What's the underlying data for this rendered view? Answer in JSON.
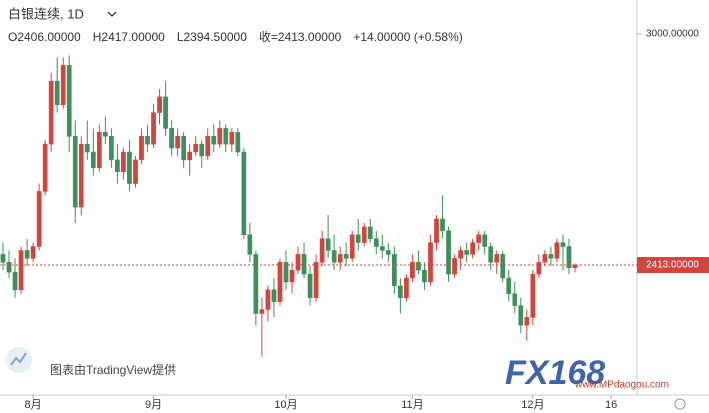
{
  "chart_data": {
    "type": "candlestick",
    "title": "白银连续, 1D",
    "ohlc_legend": [
      "O2406.00000",
      "H2417.00000",
      "L2394.50000",
      "收=2413.00000",
      "+14.00000 (+0.58%)"
    ],
    "up_color": "#d0463f",
    "down_color": "#3f8f5c",
    "open": [
      2440,
      2420,
      2395,
      2350,
      2450,
      2430,
      2460,
      2600,
      2720,
      2880,
      2820,
      2920,
      2740,
      2560,
      2720,
      2700,
      2660,
      2750,
      2740,
      2680,
      2650,
      2700,
      2620,
      2680,
      2740,
      2720,
      2800,
      2840,
      2760,
      2710,
      2740,
      2680,
      2700,
      2720,
      2690,
      2740,
      2720,
      2760,
      2720,
      2750,
      2700,
      2490,
      2440,
      2290,
      2300,
      2350,
      2320,
      2420,
      2370,
      2400,
      2440,
      2390,
      2330,
      2420,
      2480,
      2450,
      2420,
      2440,
      2430,
      2490,
      2470,
      2510,
      2480,
      2460,
      2450,
      2440,
      2360,
      2330,
      2380,
      2420,
      2400,
      2370,
      2470,
      2530,
      2500,
      2390,
      2430,
      2450,
      2440,
      2470,
      2490,
      2460,
      2420,
      2440,
      2380,
      2340,
      2310,
      2260,
      2280,
      2390,
      2420,
      2440,
      2430,
      2470,
      2460,
      2406
    ],
    "high": [
      2470,
      2450,
      2430,
      2460,
      2480,
      2470,
      2620,
      2730,
      2900,
      2940,
      2940,
      2945,
      2780,
      2740,
      2780,
      2760,
      2770,
      2790,
      2760,
      2720,
      2710,
      2730,
      2690,
      2760,
      2770,
      2820,
      2860,
      2880,
      2780,
      2760,
      2750,
      2720,
      2740,
      2730,
      2760,
      2770,
      2780,
      2770,
      2760,
      2760,
      2710,
      2520,
      2450,
      2330,
      2360,
      2380,
      2430,
      2450,
      2420,
      2460,
      2470,
      2410,
      2440,
      2500,
      2540,
      2490,
      2460,
      2470,
      2500,
      2530,
      2520,
      2530,
      2500,
      2490,
      2470,
      2460,
      2380,
      2390,
      2440,
      2450,
      2420,
      2490,
      2540,
      2590,
      2510,
      2440,
      2460,
      2470,
      2480,
      2500,
      2500,
      2470,
      2450,
      2450,
      2400,
      2370,
      2330,
      2300,
      2400,
      2440,
      2450,
      2460,
      2480,
      2490,
      2480,
      2417
    ],
    "low": [
      2400,
      2380,
      2330,
      2340,
      2410,
      2420,
      2450,
      2590,
      2700,
      2800,
      2810,
      2700,
      2520,
      2540,
      2680,
      2640,
      2650,
      2720,
      2660,
      2620,
      2630,
      2600,
      2610,
      2670,
      2700,
      2710,
      2770,
      2740,
      2690,
      2690,
      2660,
      2640,
      2690,
      2660,
      2680,
      2700,
      2710,
      2700,
      2700,
      2690,
      2480,
      2420,
      2260,
      2180,
      2270,
      2280,
      2310,
      2350,
      2340,
      2390,
      2380,
      2310,
      2320,
      2410,
      2430,
      2400,
      2400,
      2410,
      2420,
      2450,
      2460,
      2470,
      2440,
      2430,
      2420,
      2340,
      2290,
      2320,
      2370,
      2390,
      2350,
      2360,
      2450,
      2480,
      2370,
      2380,
      2400,
      2420,
      2430,
      2450,
      2440,
      2400,
      2390,
      2370,
      2320,
      2290,
      2240,
      2220,
      2260,
      2380,
      2410,
      2410,
      2420,
      2400,
      2390,
      2394.5
    ],
    "close": [
      2420,
      2395,
      2350,
      2450,
      2430,
      2460,
      2600,
      2720,
      2880,
      2820,
      2920,
      2740,
      2560,
      2720,
      2700,
      2660,
      2750,
      2740,
      2680,
      2650,
      2700,
      2620,
      2680,
      2740,
      2720,
      2800,
      2840,
      2760,
      2710,
      2740,
      2680,
      2700,
      2720,
      2690,
      2740,
      2720,
      2760,
      2720,
      2750,
      2700,
      2490,
      2440,
      2290,
      2300,
      2350,
      2320,
      2420,
      2370,
      2400,
      2440,
      2390,
      2330,
      2420,
      2480,
      2450,
      2420,
      2440,
      2430,
      2490,
      2470,
      2510,
      2480,
      2460,
      2450,
      2440,
      2360,
      2330,
      2380,
      2420,
      2400,
      2370,
      2470,
      2530,
      2500,
      2390,
      2430,
      2450,
      2440,
      2470,
      2490,
      2460,
      2420,
      2440,
      2380,
      2340,
      2310,
      2260,
      2280,
      2390,
      2420,
      2440,
      2430,
      2470,
      2460,
      2406,
      2413
    ],
    "xlim": [
      -0.5,
      105.3
    ],
    "xticks": [
      {
        "value": 5,
        "label": "8月"
      },
      {
        "value": 25,
        "label": "9月"
      },
      {
        "value": 47,
        "label": "10月"
      },
      {
        "value": 68,
        "label": "11月"
      },
      {
        "value": 88,
        "label": "12月"
      },
      {
        "value": 101,
        "label": "16"
      }
    ],
    "ylim": [
      2083,
      3086
    ],
    "yticks": [
      {
        "value": 3000,
        "label": "3000.00000"
      }
    ],
    "last_price": {
      "value": 2413,
      "label": "2413.00000"
    },
    "attribution": "图表由TradingView提供",
    "logo": "FX168",
    "logo_url": "www.MPdaogou.com"
  }
}
